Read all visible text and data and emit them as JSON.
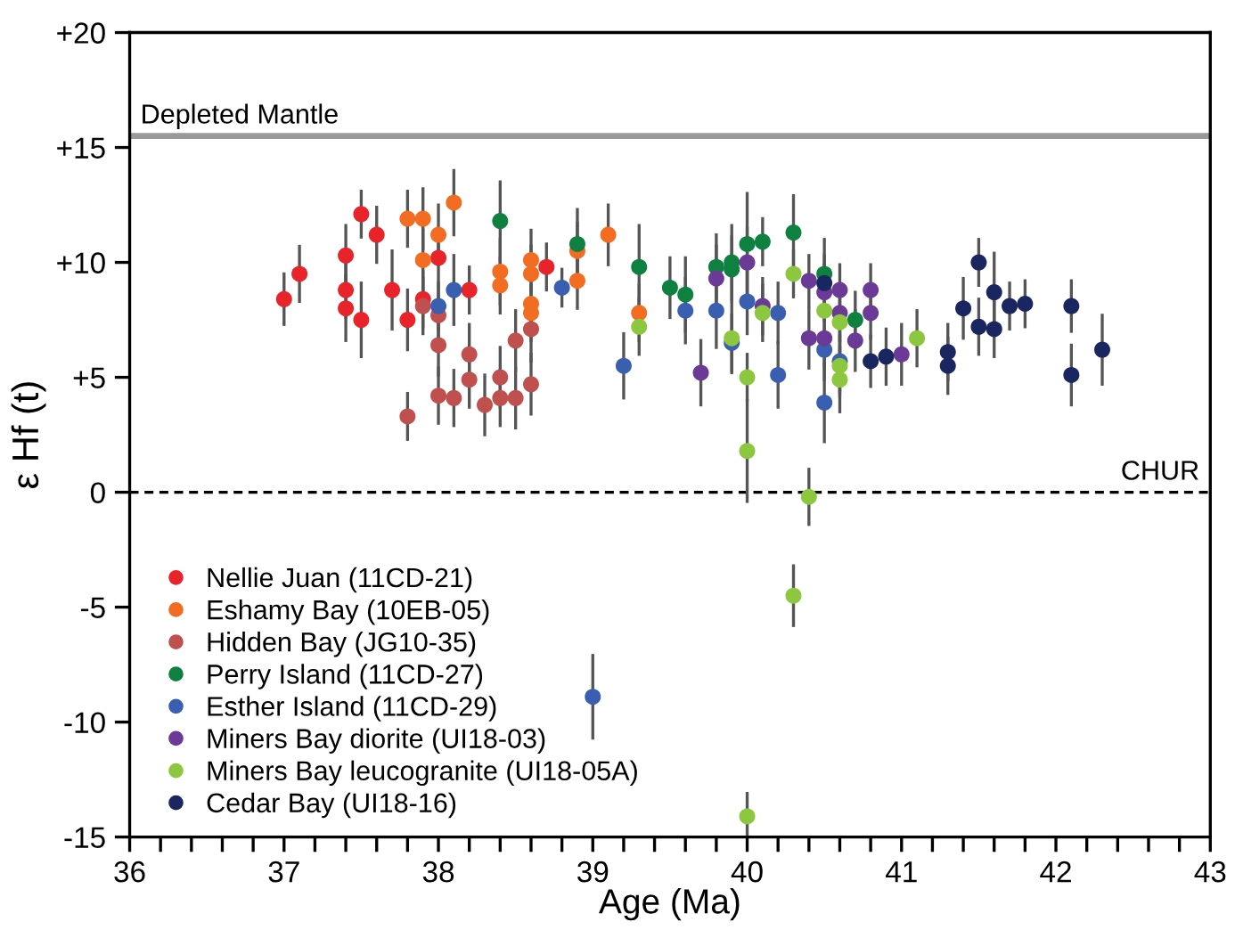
{
  "chart_data": {
    "type": "scatter",
    "xlabel": "Age (Ma)",
    "ylabel": "ε Hf (t)",
    "xlim": [
      36,
      43
    ],
    "ylim": [
      -15,
      20
    ],
    "xticks": [
      36,
      {
        "value": 36.2,
        "label": null
      },
      {
        "value": 36.4,
        "label": null
      },
      {
        "value": 36.6,
        "label": null
      },
      {
        "value": 36.8,
        "label": null
      },
      37,
      {
        "value": 37.2,
        "label": null
      },
      {
        "value": 37.4,
        "label": null
      },
      {
        "value": 37.6,
        "label": null
      },
      {
        "value": 37.8,
        "label": null
      },
      38,
      {
        "value": 38.2,
        "label": null
      },
      {
        "value": 38.4,
        "label": null
      },
      {
        "value": 38.6,
        "label": null
      },
      {
        "value": 38.8,
        "label": null
      },
      39,
      {
        "value": 39.2,
        "label": null
      },
      {
        "value": 39.4,
        "label": null
      },
      {
        "value": 39.6,
        "label": null
      },
      {
        "value": 39.8,
        "label": null
      },
      40,
      {
        "value": 40.2,
        "label": null
      },
      {
        "value": 40.4,
        "label": null
      },
      {
        "value": 40.6,
        "label": null
      },
      {
        "value": 40.8,
        "label": null
      },
      41,
      {
        "value": 41.2,
        "label": null
      },
      {
        "value": 41.4,
        "label": null
      },
      {
        "value": 41.6,
        "label": null
      },
      {
        "value": 41.8,
        "label": null
      },
      42,
      {
        "value": 42.2,
        "label": null
      },
      {
        "value": 42.4,
        "label": null
      },
      {
        "value": 42.6,
        "label": null
      },
      {
        "value": 42.8,
        "label": null
      },
      43
    ],
    "yticks": [
      {
        "value": -15,
        "label": "-15"
      },
      {
        "value": -10,
        "label": "-10"
      },
      {
        "value": -5,
        "label": "-5"
      },
      0,
      {
        "value": 5,
        "label": "+5"
      },
      {
        "value": 10,
        "label": "+10"
      },
      {
        "value": 15,
        "label": "+15"
      },
      {
        "value": 20,
        "label": "+20"
      }
    ],
    "grid": false,
    "legend": "bottom left",
    "marker": "circle",
    "ref_lines": [
      {
        "axis": "y",
        "value": 15.5,
        "label": "Depleted Mantle",
        "color": "#999999",
        "line_style": "solid"
      },
      {
        "axis": "y",
        "value": 0,
        "label": "CHUR",
        "color": "#000000",
        "line_style": "dashed"
      }
    ],
    "series": [
      {
        "name": "Nellie Juan (11CD-21)",
        "color": "#e8232a",
        "x": [
          37.0,
          37.1,
          37.4,
          37.4,
          37.4,
          37.5,
          37.5,
          37.6,
          37.7,
          37.8,
          38.0,
          37.9,
          38.2,
          38.7
        ],
        "values": [
          8.4,
          9.5,
          10.3,
          8.8,
          8.0,
          12.1,
          7.5,
          11.2,
          8.8,
          7.5,
          10.2,
          8.4,
          8.8,
          9.8
        ],
        "errors": [
          1.1,
          1.2,
          1.3,
          1.2,
          1.4,
          1.0,
          1.6,
          1.2,
          1.7,
          1.3,
          1.2,
          1.2,
          1.0,
          1.0
        ]
      },
      {
        "name": "Eshamy Bay (10EB-05)",
        "color": "#f26c21",
        "x": [
          37.8,
          37.9,
          37.9,
          38.0,
          38.1,
          38.4,
          38.4,
          38.6,
          38.6,
          38.6,
          38.6,
          38.9,
          38.9,
          39.1,
          39.3
        ],
        "values": [
          11.9,
          11.9,
          10.1,
          11.2,
          12.6,
          9.6,
          9.0,
          10.1,
          9.5,
          8.2,
          7.8,
          10.5,
          9.2,
          11.2,
          7.8
        ],
        "errors": [
          1.2,
          1.3,
          1.3,
          1.3,
          1.4,
          1.4,
          1.2,
          1.3,
          1.2,
          null,
          1.2,
          1.2,
          1.2,
          1.3,
          1.2
        ]
      },
      {
        "name": "Hidden Bay (JG10-35)",
        "color": "#c0504d",
        "x": [
          37.8,
          37.9,
          38.0,
          38.0,
          38.0,
          38.1,
          38.2,
          38.2,
          38.3,
          38.4,
          38.4,
          38.5,
          38.5,
          38.6,
          38.6
        ],
        "values": [
          3.3,
          8.1,
          7.7,
          6.4,
          4.2,
          4.1,
          6.0,
          4.9,
          3.8,
          5.0,
          4.1,
          4.1,
          6.6,
          7.1,
          4.7
        ],
        "errors": [
          1.0,
          1.2,
          1.2,
          1.3,
          1.2,
          1.2,
          1.3,
          1.2,
          1.3,
          1.3,
          1.2,
          1.3,
          1.3,
          1.4,
          1.3
        ]
      },
      {
        "name": "Perry Island (11CD-27)",
        "color": "#0e8040",
        "x": [
          38.4,
          38.9,
          39.3,
          39.5,
          39.6,
          39.8,
          39.9,
          39.9,
          40.0,
          40.1,
          40.3,
          40.5,
          40.7
        ],
        "values": [
          11.8,
          10.8,
          9.8,
          8.9,
          8.6,
          9.8,
          10.0,
          9.7,
          10.8,
          10.9,
          11.3,
          9.5,
          7.5
        ],
        "errors": [
          1.7,
          1.5,
          1.8,
          1.3,
          1.6,
          1.4,
          1.6,
          1.4,
          2.2,
          1.0,
          1.6,
          1.5,
          1.2
        ]
      },
      {
        "name": "Esther Island (11CD-29)",
        "color": "#3a5fb0",
        "x": [
          38.0,
          38.1,
          38.8,
          39.0,
          39.2,
          39.6,
          39.8,
          39.9,
          40.0,
          40.2,
          40.2,
          40.5,
          40.5,
          40.6
        ],
        "values": [
          8.1,
          8.8,
          8.9,
          -8.9,
          5.5,
          7.9,
          7.9,
          6.5,
          8.3,
          7.8,
          5.1,
          6.2,
          3.9,
          5.7
        ],
        "errors": [
          1.0,
          1.5,
          0.8,
          1.8,
          1.4,
          1.4,
          1.6,
          1.2,
          1.4,
          1.3,
          1.4,
          1.3,
          1.7,
          1.3
        ]
      },
      {
        "name": "Miners Bay diorite (UI18-03)",
        "color": "#6b3a96",
        "x": [
          39.7,
          39.8,
          40.0,
          40.1,
          40.4,
          40.4,
          40.5,
          40.5,
          40.6,
          40.6,
          40.7,
          40.8,
          40.8,
          41.0
        ],
        "values": [
          5.2,
          9.3,
          10.0,
          8.1,
          9.2,
          6.7,
          8.7,
          6.7,
          8.8,
          7.8,
          6.6,
          8.8,
          7.8,
          6.0
        ],
        "errors": [
          1.4,
          1.4,
          1.5,
          1.2,
          1.1,
          1.3,
          1.2,
          1.2,
          1.1,
          1.2,
          1.3,
          1.1,
          1.1,
          1.3
        ]
      },
      {
        "name": "Miners Bay leucogranite (UI18-05A)",
        "color": "#8dc63f",
        "x": [
          39.3,
          39.9,
          40.0,
          40.0,
          40.1,
          40.3,
          40.4,
          40.5,
          40.6,
          40.6,
          40.6,
          41.1,
          40.3,
          40.0
        ],
        "values": [
          7.2,
          6.7,
          5.0,
          1.8,
          7.8,
          9.5,
          -0.2,
          7.9,
          7.4,
          5.5,
          4.9,
          6.7,
          -4.5,
          -14.1
        ],
        "errors": [
          1.2,
          1.5,
          1.0,
          2.2,
          1.2,
          1.0,
          1.2,
          null,
          1.3,
          1.3,
          1.4,
          1.2,
          1.3,
          1.0
        ]
      },
      {
        "name": "Cedar Bay (UI18-16)",
        "color": "#1a2660",
        "x": [
          40.5,
          40.8,
          40.9,
          41.3,
          41.3,
          41.4,
          41.5,
          41.5,
          41.6,
          41.6,
          41.7,
          41.8,
          42.1,
          42.1,
          42.3
        ],
        "values": [
          9.1,
          5.7,
          5.9,
          6.1,
          5.5,
          8.0,
          10.0,
          7.2,
          8.7,
          7.1,
          8.1,
          8.2,
          8.1,
          5.1,
          6.2
        ],
        "errors": [
          1.2,
          1.1,
          1.2,
          1.2,
          1.2,
          1.3,
          1.0,
          1.2,
          1.7,
          1.2,
          1.0,
          1.0,
          1.1,
          1.3,
          1.5
        ]
      }
    ]
  }
}
